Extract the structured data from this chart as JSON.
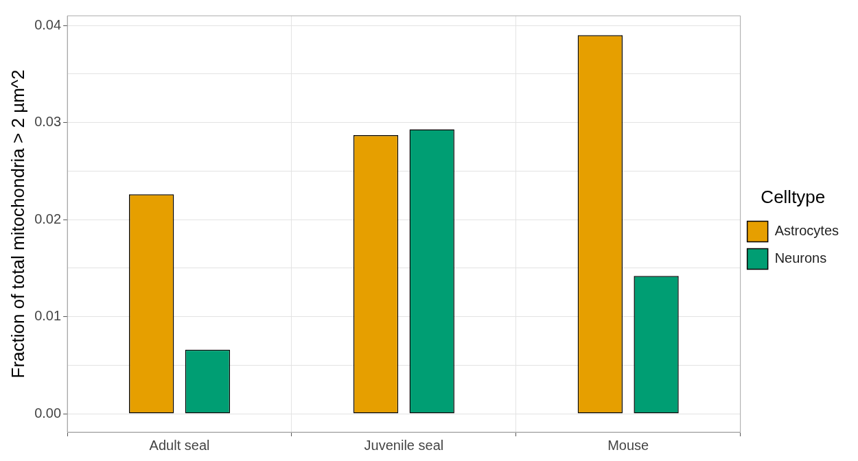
{
  "chart_data": {
    "type": "bar",
    "ylabel": "Fraction of total mitochondria > 2 µm^2",
    "legend_title": "Celltype",
    "categories": [
      "Adult seal",
      "Juvenile seal",
      "Mouse"
    ],
    "series": [
      {
        "name": "Astrocytes",
        "color": "#e69f00",
        "values": [
          0.0226,
          0.0287,
          0.039
        ]
      },
      {
        "name": "Neurons",
        "color": "#009e73",
        "values": [
          0.0066,
          0.0293,
          0.0142
        ]
      }
    ],
    "ylim": [
      -0.0019,
      0.041
    ],
    "yticks": [
      {
        "value": 0,
        "label": "0.00"
      },
      {
        "value": 0.005,
        "label": null
      },
      0.01,
      {
        "value": 0.015,
        "label": null
      },
      0.02,
      {
        "value": 0.025,
        "label": null
      },
      0.03,
      {
        "value": 0.035,
        "label": null
      },
      0.04
    ],
    "grid": true,
    "legend": "right"
  }
}
